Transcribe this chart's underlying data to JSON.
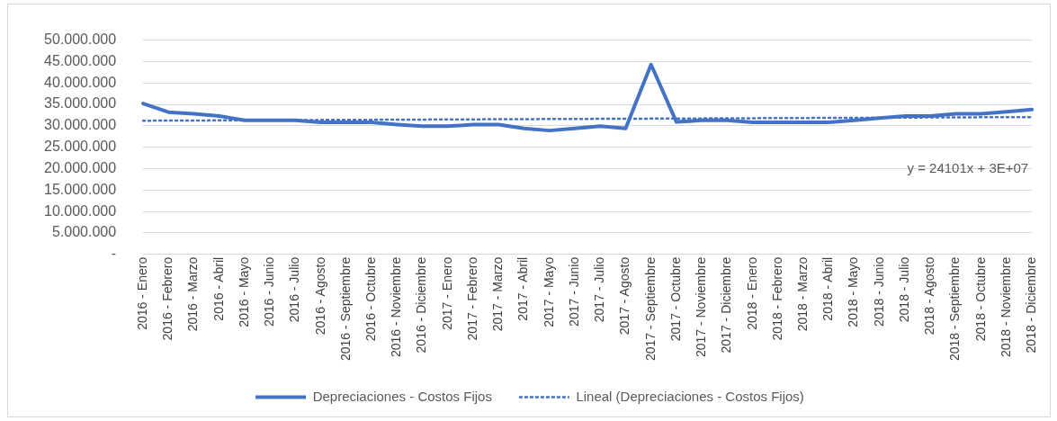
{
  "chart_data": {
    "type": "line",
    "categories": [
      "2016 - Enero",
      "2016 - Febrero",
      "2016 - Marzo",
      "2016 - Abril",
      "2016 - Mayo",
      "2016 - Junio",
      "2016 - Julio",
      "2016 - Agosto",
      "2016 - Septiembre",
      "2016 - Octubre",
      "2016 - Noviembre",
      "2016 - Diciembre",
      "2017 - Enero",
      "2017 - Febrero",
      "2017 - Marzo",
      "2017 - Abril",
      "2017 - Mayo",
      "2017 - Junio",
      "2017 - Julio",
      "2017 - Agosto",
      "2017 - Septiembre",
      "2017 - Octubre",
      "2017 - Noviembre",
      "2017 - Diciembre",
      "2018 - Enero",
      "2018 - Febrero",
      "2018 - Marzo",
      "2018 - Abril",
      "2018 - Mayo",
      "2018 - Junio",
      "2018 - Julio",
      "2018 - Agosto",
      "2018 - Septiembre",
      "2018 - Octubre",
      "2018 - Noviembre",
      "2018 - Diciembre"
    ],
    "series": [
      {
        "name": "Depreciaciones - Costos Fijos",
        "color": "#4472c4",
        "line_style": "solid",
        "values": [
          35200000,
          33200000,
          32800000,
          32300000,
          31300000,
          31300000,
          31300000,
          30800000,
          30800000,
          30800000,
          30300000,
          29900000,
          29900000,
          30300000,
          30300000,
          29400000,
          28900000,
          29400000,
          29900000,
          29400000,
          44300000,
          30900000,
          31300000,
          31300000,
          30800000,
          30800000,
          30800000,
          30800000,
          31300000,
          31800000,
          32300000,
          32300000,
          32800000,
          32800000,
          33300000,
          33800000
        ]
      },
      {
        "name": "Lineal (Depreciaciones - Costos Fijos)",
        "color": "#4472c4",
        "type": "line",
        "line_style": "dotted",
        "x": [
          "2016 - Enero",
          "2018 - Diciembre"
        ],
        "values": [
          31200000,
          32050000
        ]
      }
    ],
    "ylim": [
      0,
      50000000
    ],
    "yticks": [
      {
        "value": 0,
        "label": "-"
      },
      {
        "value": 5000000,
        "label": "5.000.000"
      },
      {
        "value": 10000000,
        "label": "10.000.000"
      },
      {
        "value": 15000000,
        "label": "15.000.000"
      },
      {
        "value": 20000000,
        "label": "20.000.000"
      },
      {
        "value": 25000000,
        "label": "25.000.000"
      },
      {
        "value": 30000000,
        "label": "30.000.000"
      },
      {
        "value": 35000000,
        "label": "35.000.000"
      },
      {
        "value": 40000000,
        "label": "40.000.000"
      },
      {
        "value": 45000000,
        "label": "45.000.000"
      },
      {
        "value": 50000000,
        "label": "50.000.000"
      }
    ],
    "grid": "y",
    "legend": "bottom",
    "marker": "none",
    "annotations": [
      "y = 24101x + 3E+07"
    ]
  }
}
